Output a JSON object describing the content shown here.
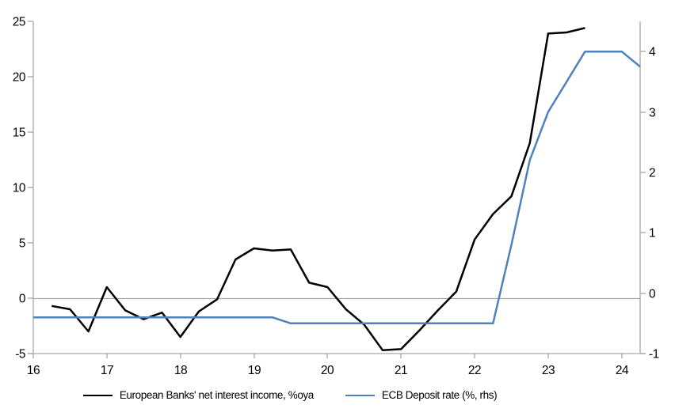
{
  "chart_data": {
    "type": "line",
    "title": "",
    "xlabel": "",
    "ylabel_left": "",
    "ylabel_right": "",
    "grid": "zero-line-only",
    "legend_position": "bottom",
    "x_axis": {
      "min": 16,
      "max": 24.25,
      "ticks": [
        16,
        17,
        18,
        19,
        20,
        21,
        22,
        23,
        24
      ],
      "tick_labels": [
        "16",
        "17",
        "18",
        "19",
        "20",
        "21",
        "22",
        "23",
        "24"
      ]
    },
    "left_axis": {
      "min": -5,
      "max": 25,
      "ticks": [
        25,
        20,
        15,
        10,
        5,
        0,
        -5
      ],
      "tick_labels": [
        "25",
        "20",
        "15",
        "10",
        "5",
        "0",
        "-5"
      ]
    },
    "right_axis": {
      "min": -1,
      "max": 4.5,
      "ticks": [
        4,
        3,
        2,
        1,
        0,
        -1
      ],
      "tick_labels": [
        "4",
        "3",
        "2",
        "1",
        "0",
        "-1"
      ]
    },
    "series": [
      {
        "name": "European Banks' net interest income, %oya",
        "axis": "left",
        "color": "#000000",
        "x": [
          16.25,
          16.5,
          16.75,
          17.0,
          17.25,
          17.5,
          17.75,
          18.0,
          18.25,
          18.5,
          18.75,
          19.0,
          19.25,
          19.5,
          19.75,
          20.0,
          20.25,
          20.5,
          20.75,
          21.0,
          21.25,
          21.5,
          21.75,
          22.0,
          22.25,
          22.5,
          22.75,
          23.0,
          23.25,
          23.5
        ],
        "values": [
          -0.7,
          -1.0,
          -3.0,
          1.0,
          -1.1,
          -1.9,
          -1.3,
          -3.5,
          -1.2,
          -0.1,
          3.5,
          4.5,
          4.3,
          4.4,
          1.4,
          1.0,
          -1.0,
          -2.4,
          -4.7,
          -4.6,
          -2.9,
          -1.1,
          0.6,
          5.3,
          7.6,
          9.2,
          14.0,
          23.9,
          24.0,
          24.4
        ]
      },
      {
        "name": "ECB Deposit rate (%, rhs)",
        "axis": "right",
        "color": "#4e81bd",
        "x": [
          16.0,
          16.25,
          16.5,
          16.75,
          17.0,
          17.25,
          17.5,
          17.75,
          18.0,
          18.25,
          18.5,
          18.75,
          19.0,
          19.25,
          19.5,
          19.75,
          20.0,
          20.25,
          20.5,
          20.75,
          21.0,
          21.25,
          21.5,
          21.75,
          22.0,
          22.25,
          22.5,
          22.75,
          23.0,
          23.25,
          23.5,
          23.75,
          24.0,
          24.25
        ],
        "values": [
          -0.4,
          -0.4,
          -0.4,
          -0.4,
          -0.4,
          -0.4,
          -0.4,
          -0.4,
          -0.4,
          -0.4,
          -0.4,
          -0.4,
          -0.4,
          -0.4,
          -0.5,
          -0.5,
          -0.5,
          -0.5,
          -0.5,
          -0.5,
          -0.5,
          -0.5,
          -0.5,
          -0.5,
          -0.5,
          -0.5,
          0.8,
          2.2,
          3.0,
          3.5,
          4.0,
          4.0,
          4.0,
          3.75
        ]
      }
    ]
  },
  "colors": {
    "axis_line": "#a6a6a6",
    "zero_gridline": "#a6a6a6",
    "background": "#ffffff",
    "tick_label": "#000000",
    "series_black": "#000000",
    "series_blue": "#4e81bd"
  },
  "legend": {
    "items": [
      {
        "label": "European Banks' net interest income, %oya"
      },
      {
        "label": "ECB Deposit rate (%, rhs)"
      }
    ]
  }
}
